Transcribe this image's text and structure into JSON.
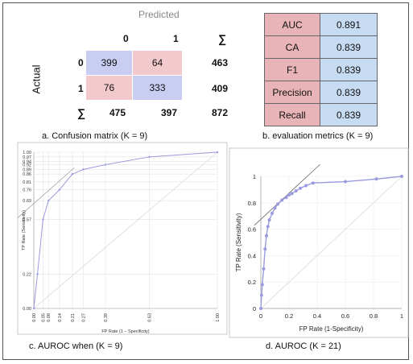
{
  "confusion_matrix": {
    "predicted_label": "Predicted",
    "actual_label": "Actual",
    "col_headers": [
      "0",
      "1",
      "∑"
    ],
    "row_headers": [
      "0",
      "1",
      "∑"
    ],
    "cells": [
      [
        "399",
        "64"
      ],
      [
        "76",
        "333"
      ]
    ],
    "row_totals": [
      "463",
      "409"
    ],
    "col_totals": [
      "475",
      "397",
      "872"
    ],
    "colors": {
      "correct": "#c9cdf2",
      "incorrect": "#f2c9cc"
    },
    "caption": "a. Confusion matrix (K = 9)"
  },
  "metrics": {
    "rows": [
      {
        "name": "AUC",
        "value": "0.891"
      },
      {
        "name": "CA",
        "value": "0.839"
      },
      {
        "name": "F1",
        "value": "0.839"
      },
      {
        "name": "Precision",
        "value": "0.839"
      },
      {
        "name": "Recall",
        "value": "0.839"
      }
    ],
    "caption": "b. evaluation metrics (K = 9)"
  },
  "chart_data": [
    {
      "type": "line",
      "xlabel": "FP Rate (1 – Specificity)",
      "ylabel": "TP Rate (Sensitivity)",
      "x_ticks": [
        "0.00",
        "0.05",
        "0.08",
        "0.14",
        "0.21",
        "0.27",
        "0.39",
        "0.63",
        "1.00"
      ],
      "y_ticks": [
        "0.00",
        "0.22",
        "0.57",
        "0.69",
        "0.76",
        "0.81",
        "0.86",
        "0.89",
        "0.92",
        "0.94",
        "0.97",
        "1.00"
      ],
      "x": [
        0.0,
        0.02,
        0.05,
        0.08,
        0.14,
        0.21,
        0.27,
        0.39,
        0.63,
        1.0
      ],
      "y": [
        0.0,
        0.22,
        0.57,
        0.69,
        0.76,
        0.86,
        0.89,
        0.92,
        0.97,
        1.0
      ],
      "xlim": [
        0,
        1
      ],
      "ylim": [
        0,
        1
      ],
      "grid": true,
      "caption": "c.  AUROC when (K = 9)"
    },
    {
      "type": "line",
      "xlabel": "FP Rate (1-Specificity)",
      "ylabel": "TP Rate (Sensitivity)",
      "x_ticks": [
        "0",
        "0.2",
        "0.4",
        "0.6",
        "0.8",
        "1"
      ],
      "y_ticks": [
        "0",
        "0.2",
        "0.4",
        "0.6",
        "0.8",
        "1"
      ],
      "x": [
        0.0,
        0.005,
        0.01,
        0.02,
        0.03,
        0.04,
        0.05,
        0.06,
        0.08,
        0.1,
        0.12,
        0.15,
        0.18,
        0.2,
        0.22,
        0.25,
        0.28,
        0.32,
        0.37,
        0.6,
        0.82,
        1.0
      ],
      "y": [
        0.0,
        0.1,
        0.18,
        0.3,
        0.45,
        0.55,
        0.62,
        0.67,
        0.72,
        0.76,
        0.79,
        0.82,
        0.84,
        0.86,
        0.87,
        0.89,
        0.91,
        0.93,
        0.95,
        0.96,
        0.98,
        1.0
      ],
      "xlim": [
        0,
        1
      ],
      "ylim": [
        0,
        1
      ],
      "grid": true,
      "caption": "d. AUROC (K = 21)"
    }
  ]
}
